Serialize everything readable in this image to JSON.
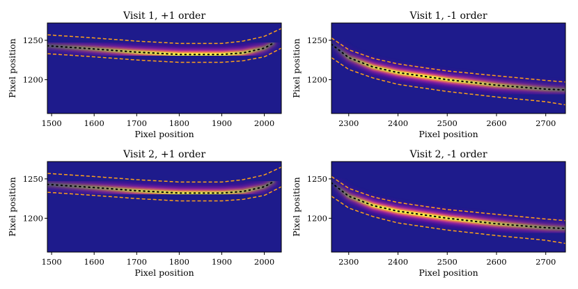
{
  "figure": {
    "colors": {
      "background": "#1e1b8c",
      "glow_outer": "#7a10a8",
      "glow_mid": "#e8498a",
      "glow_inner": "#fca636",
      "core": "#f8f44a",
      "aperture": "#ffa21a",
      "trace": "#000000"
    }
  },
  "chart_data": [
    {
      "type": "heatmap",
      "title": "Visit 1, +1 order",
      "xlabel": "Pixel position",
      "ylabel": "Pixel position",
      "xlim": [
        1490,
        2040
      ],
      "ylim": [
        1157,
        1272
      ],
      "xticks": [
        1500,
        1600,
        1700,
        1800,
        1900,
        2000
      ],
      "yticks": [
        1200,
        1250
      ],
      "trace_center": {
        "x": [
          1490,
          1600,
          1700,
          1800,
          1900,
          1950,
          2000,
          2020
        ],
        "y": [
          1243,
          1239,
          1235,
          1232,
          1232,
          1234,
          1240,
          1246
        ]
      },
      "aperture_upper": {
        "x": [
          1490,
          1600,
          1700,
          1800,
          1900,
          1950,
          2000,
          2040
        ],
        "y": [
          1257,
          1253,
          1249,
          1246,
          1246,
          1249,
          1255,
          1265
        ]
      },
      "aperture_lower": {
        "x": [
          1490,
          1600,
          1700,
          1800,
          1900,
          1950,
          2000,
          2040
        ],
        "y": [
          1233,
          1229,
          1225,
          1222,
          1222,
          1224,
          1229,
          1240
        ]
      },
      "brightness": {
        "x": [
          1490,
          1600,
          1700,
          1800,
          1900,
          1970,
          2020
        ],
        "level": [
          0.25,
          0.55,
          0.8,
          1.0,
          1.0,
          0.7,
          0.3
        ]
      }
    },
    {
      "type": "heatmap",
      "title": "Visit 1, -1 order",
      "xlabel": "Pixel position",
      "ylabel": "Pixel position",
      "xlim": [
        2265,
        2740
      ],
      "ylim": [
        1157,
        1272
      ],
      "xticks": [
        2300,
        2400,
        2500,
        2600,
        2700
      ],
      "yticks": [
        1200,
        1250
      ],
      "trace_center": {
        "x": [
          2265,
          2300,
          2350,
          2400,
          2500,
          2600,
          2700,
          2740
        ],
        "y": [
          1245,
          1228,
          1216,
          1209,
          1200,
          1193,
          1188,
          1187
        ]
      },
      "aperture_upper": {
        "x": [
          2265,
          2300,
          2350,
          2400,
          2500,
          2600,
          2700,
          2740
        ],
        "y": [
          1253,
          1238,
          1227,
          1220,
          1211,
          1205,
          1199,
          1197
        ]
      },
      "aperture_lower": {
        "x": [
          2265,
          2300,
          2350,
          2400,
          2500,
          2600,
          2700,
          2740
        ],
        "y": [
          1228,
          1213,
          1202,
          1194,
          1185,
          1178,
          1172,
          1168
        ]
      },
      "brightness": {
        "x": [
          2265,
          2300,
          2350,
          2450,
          2550,
          2650,
          2740
        ],
        "level": [
          0.05,
          0.45,
          0.85,
          1.0,
          0.85,
          0.55,
          0.35
        ]
      }
    },
    {
      "type": "heatmap",
      "title": "Visit 2, +1 order",
      "xlabel": "Pixel position",
      "ylabel": "Pixel position",
      "xlim": [
        1490,
        2040
      ],
      "ylim": [
        1157,
        1272
      ],
      "xticks": [
        1500,
        1600,
        1700,
        1800,
        1900,
        2000
      ],
      "yticks": [
        1200,
        1250
      ],
      "trace_center": {
        "x": [
          1490,
          1600,
          1700,
          1800,
          1900,
          1950,
          2000,
          2020
        ],
        "y": [
          1243,
          1239,
          1235,
          1232,
          1232,
          1234,
          1240,
          1246
        ]
      },
      "aperture_upper": {
        "x": [
          1490,
          1600,
          1700,
          1800,
          1900,
          1950,
          2000,
          2040
        ],
        "y": [
          1257,
          1253,
          1249,
          1246,
          1246,
          1249,
          1255,
          1265
        ]
      },
      "aperture_lower": {
        "x": [
          1490,
          1600,
          1700,
          1800,
          1900,
          1950,
          2000,
          2040
        ],
        "y": [
          1233,
          1229,
          1225,
          1222,
          1222,
          1224,
          1229,
          1240
        ]
      },
      "brightness": {
        "x": [
          1490,
          1600,
          1700,
          1800,
          1900,
          1970,
          2020
        ],
        "level": [
          0.25,
          0.5,
          0.75,
          0.9,
          0.85,
          0.6,
          0.3
        ]
      }
    },
    {
      "type": "heatmap",
      "title": "Visit 2, -1 order",
      "xlabel": "Pixel position",
      "ylabel": "Pixel position",
      "xlim": [
        2265,
        2740
      ],
      "ylim": [
        1157,
        1272
      ],
      "xticks": [
        2300,
        2400,
        2500,
        2600,
        2700
      ],
      "yticks": [
        1200,
        1250
      ],
      "trace_center": {
        "x": [
          2265,
          2300,
          2350,
          2400,
          2500,
          2600,
          2700,
          2740
        ],
        "y": [
          1245,
          1228,
          1216,
          1209,
          1200,
          1193,
          1188,
          1187
        ]
      },
      "aperture_upper": {
        "x": [
          2265,
          2300,
          2350,
          2400,
          2500,
          2600,
          2700,
          2740
        ],
        "y": [
          1253,
          1238,
          1227,
          1220,
          1211,
          1205,
          1199,
          1197
        ]
      },
      "aperture_lower": {
        "x": [
          2265,
          2300,
          2350,
          2400,
          2500,
          2600,
          2700,
          2740
        ],
        "y": [
          1228,
          1213,
          1202,
          1194,
          1185,
          1178,
          1172,
          1168
        ]
      },
      "brightness": {
        "x": [
          2265,
          2300,
          2350,
          2450,
          2550,
          2650,
          2740
        ],
        "level": [
          0.05,
          0.5,
          0.95,
          1.0,
          0.9,
          0.6,
          0.4
        ]
      }
    }
  ]
}
